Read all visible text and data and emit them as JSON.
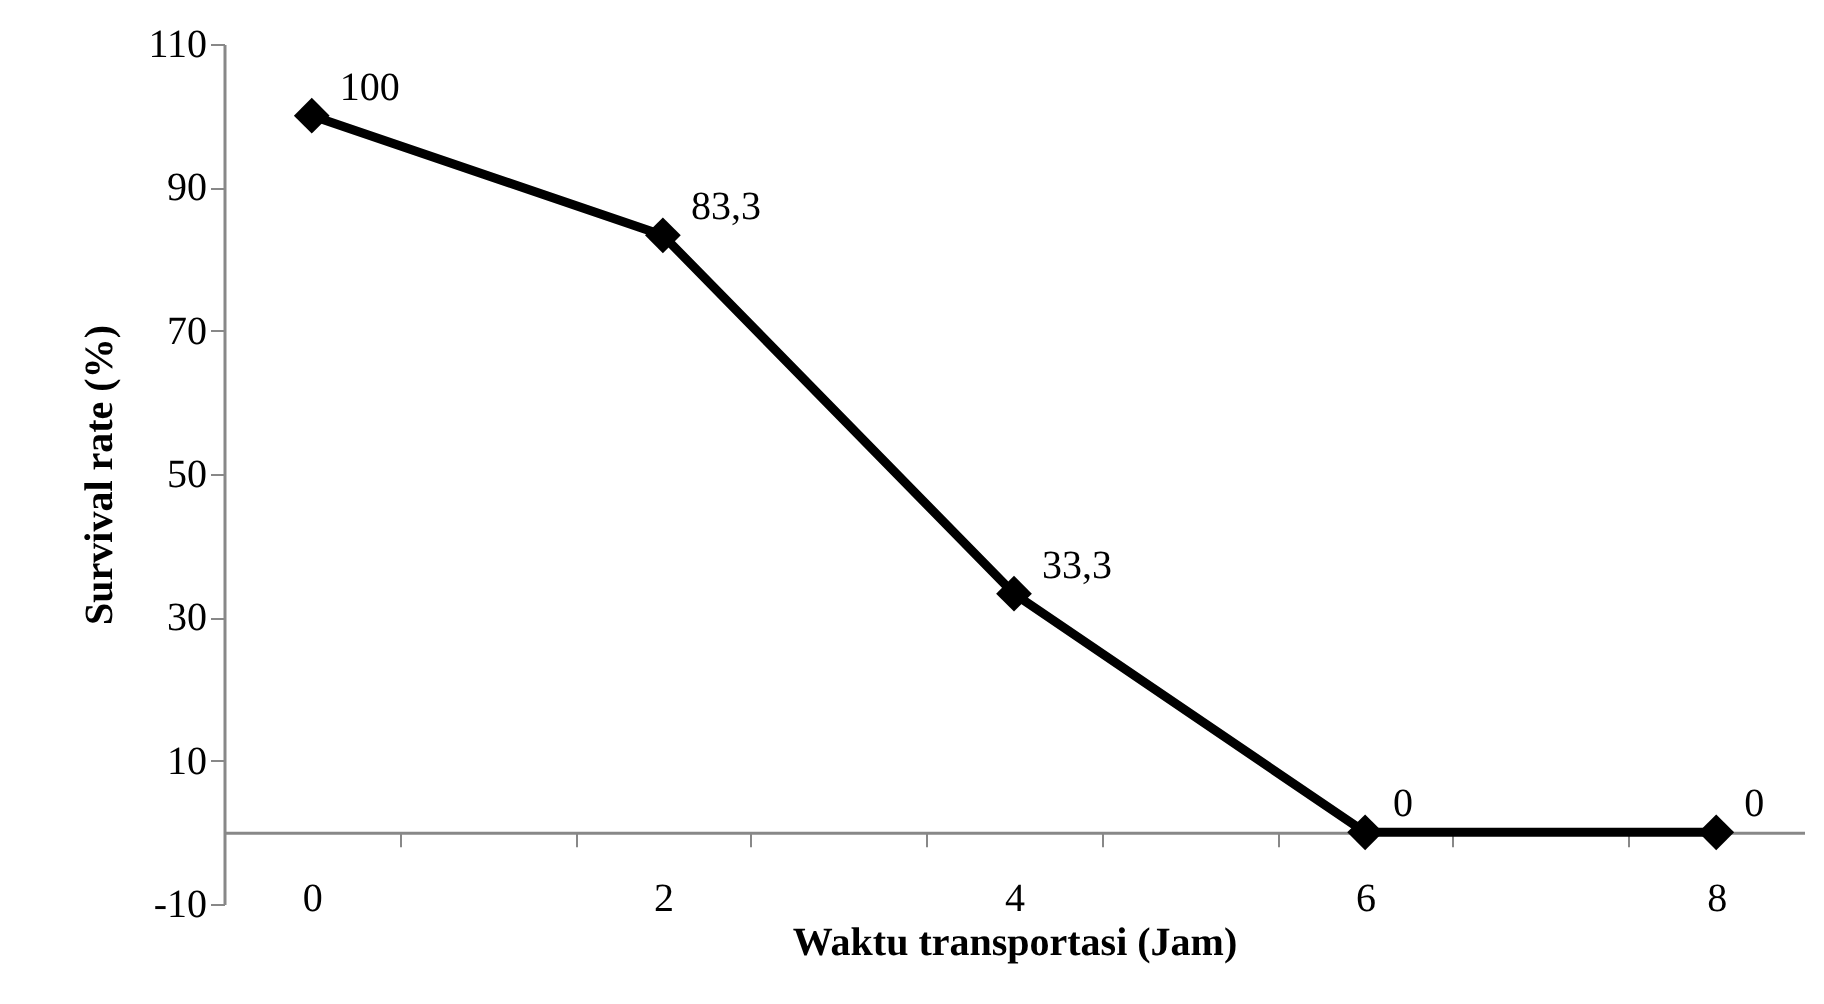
{
  "chart_data": {
    "type": "line",
    "xlabel": "Waktu transportasi (Jam)",
    "ylabel": "Survival rate (%)",
    "x": [
      0,
      2,
      4,
      6,
      8
    ],
    "series": [
      {
        "color": "#000000",
        "values": [
          100,
          83.3,
          33.3,
          0,
          0
        ],
        "value_labels": [
          "100",
          "83,3",
          "33,3",
          "0",
          "0"
        ]
      }
    ],
    "xlim": [
      -0.5,
      8.5
    ],
    "xticks": [
      0,
      2,
      4,
      6,
      8,
      {
        "value": 0.5,
        "label": null
      },
      {
        "value": 1.5,
        "label": null
      },
      {
        "value": 2.5,
        "label": null
      },
      {
        "value": 3.5,
        "label": null
      },
      {
        "value": 4.5,
        "label": null
      },
      {
        "value": 5.5,
        "label": null
      },
      {
        "value": 6.5,
        "label": null
      },
      {
        "value": 7.5,
        "label": null
      }
    ],
    "ylim": [
      -10,
      110
    ],
    "yticks": [
      -10,
      10,
      30,
      50,
      70,
      90,
      110
    ],
    "marker": "diamond",
    "line_style": "solid",
    "grid": false
  }
}
